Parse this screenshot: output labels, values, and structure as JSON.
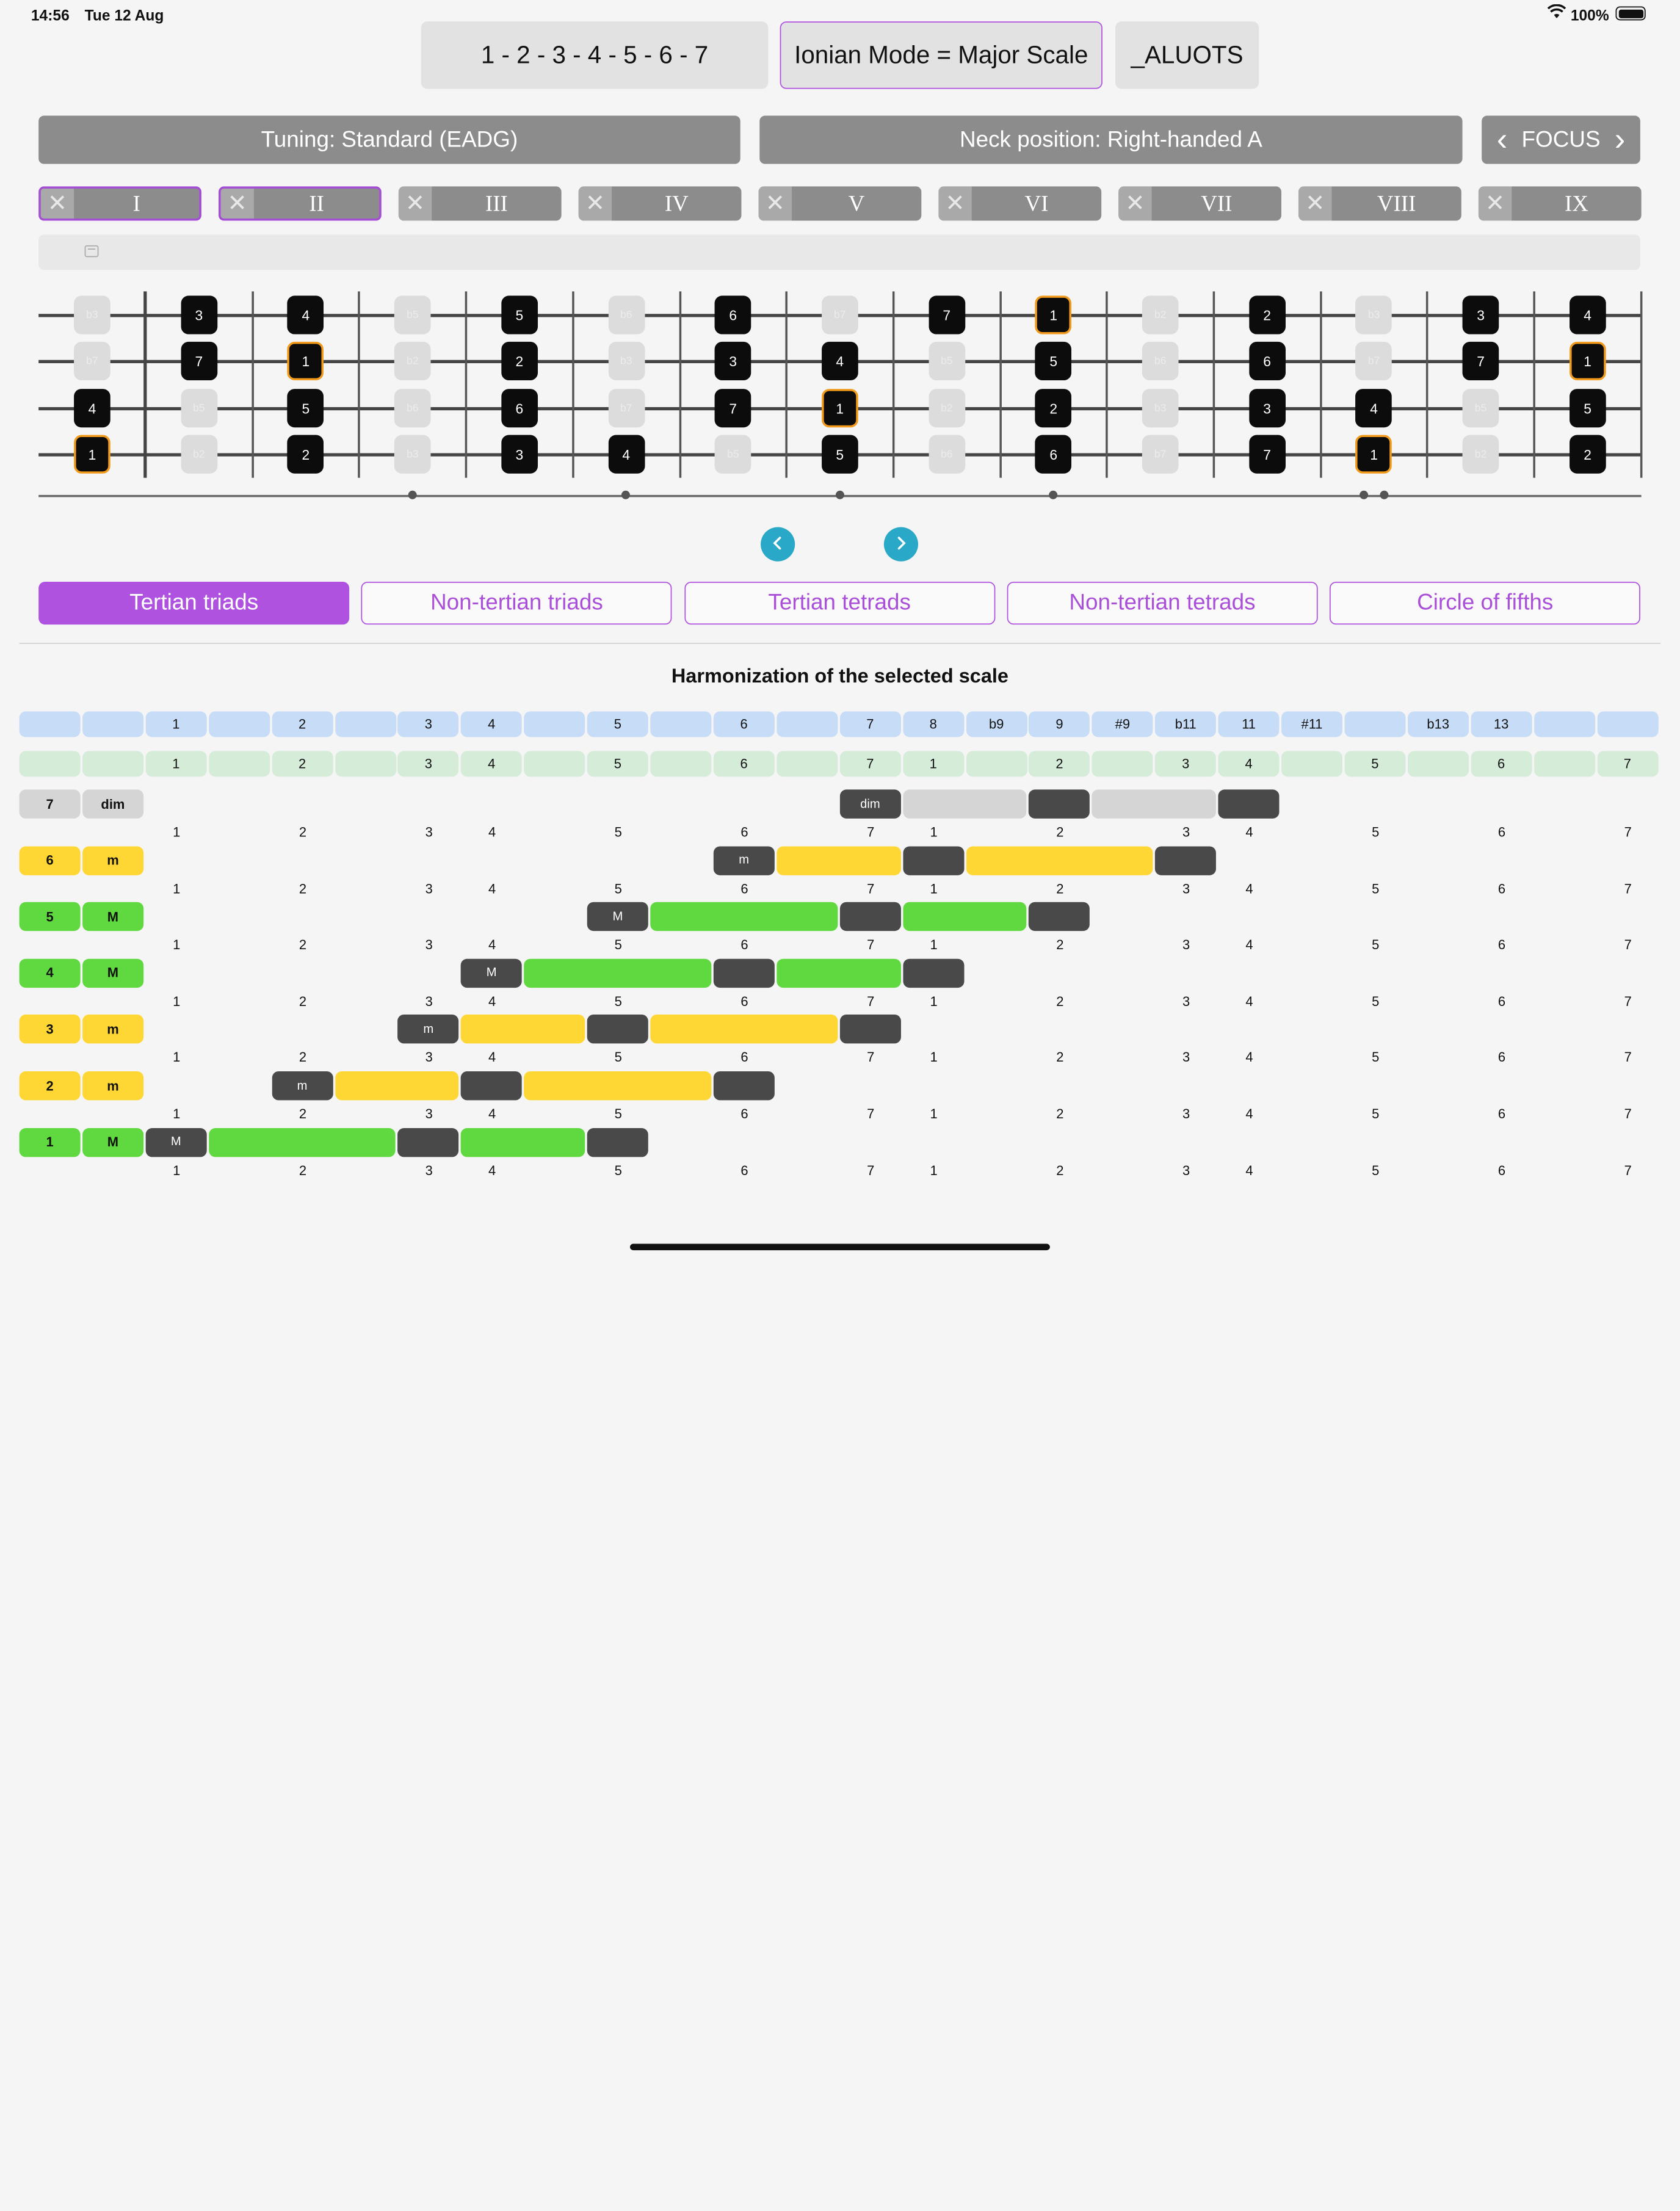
{
  "status": {
    "time": "14:56",
    "date": "Tue 12 Aug",
    "battery": "100%"
  },
  "top": {
    "formula": "1 - 2 - 3 - 4 - 5 - 6 - 7",
    "mode": "Ionian Mode = Major Scale",
    "reversed": "_ALUOTS"
  },
  "controls": {
    "tuning": "Tuning: Standard (EADG)",
    "neck": "Neck position: Right-handed A",
    "focus": "FOCUS",
    "prev_glyph": "‹",
    "next_glyph": "›"
  },
  "positions": [
    {
      "label": "I",
      "selected": true
    },
    {
      "label": "II",
      "selected": true
    },
    {
      "label": "III",
      "selected": false
    },
    {
      "label": "IV",
      "selected": false
    },
    {
      "label": "V",
      "selected": false
    },
    {
      "label": "VI",
      "selected": false
    },
    {
      "label": "VII",
      "selected": false
    },
    {
      "label": "VIII",
      "selected": false
    },
    {
      "label": "IX",
      "selected": false
    }
  ],
  "fretboard": {
    "strings": [
      [
        "b3",
        "3",
        "4",
        "b5",
        "5",
        "b6",
        "6",
        "b7",
        "7",
        "1",
        "b2",
        "2",
        "b3",
        "3",
        "4"
      ],
      [
        "b7",
        "7",
        "1",
        "b2",
        "2",
        "b3",
        "3",
        "4",
        "b5",
        "5",
        "b6",
        "6",
        "b7",
        "7",
        "1"
      ],
      [
        "4",
        "b5",
        "5",
        "b6",
        "6",
        "b7",
        "7",
        "1",
        "b2",
        "2",
        "b3",
        "3",
        "4",
        "b5",
        "5"
      ],
      [
        "1",
        "b2",
        "2",
        "b3",
        "3",
        "4",
        "b5",
        "5",
        "b6",
        "6",
        "b7",
        "7",
        "1",
        "b2",
        "2"
      ]
    ],
    "in_scale": [
      "1",
      "2",
      "3",
      "4",
      "5",
      "6",
      "7"
    ],
    "root": "1",
    "markers": [
      3,
      5,
      7,
      9,
      12
    ]
  },
  "tabs": [
    {
      "label": "Tertian triads",
      "active": true
    },
    {
      "label": "Non-tertian triads",
      "active": false
    },
    {
      "label": "Tertian tetrads",
      "active": false
    },
    {
      "label": "Non-tertian tetrads",
      "active": false
    },
    {
      "label": "Circle of fifths",
      "active": false
    }
  ],
  "harmonization": {
    "title": "Harmonization of the selected scale",
    "interval_row": [
      "",
      "",
      "1",
      "",
      "2",
      "",
      "3",
      "4",
      "",
      "5",
      "",
      "6",
      "",
      "7",
      "8",
      "b9",
      "9",
      "#9",
      "b11",
      "11",
      "#11",
      "",
      "b13",
      "13",
      "",
      ""
    ],
    "degree_row": [
      "",
      "",
      "1",
      "",
      "2",
      "",
      "3",
      "4",
      "",
      "5",
      "",
      "6",
      "",
      "7",
      "1",
      "",
      "2",
      "",
      "3",
      "4",
      "",
      "5",
      "",
      "6",
      "",
      "7"
    ],
    "number_row": [
      "",
      "",
      "1",
      "",
      "2",
      "",
      "3",
      "4",
      "",
      "5",
      "",
      "6",
      "",
      "7",
      "1",
      "",
      "2",
      "",
      "3",
      "4",
      "",
      "5",
      "",
      "6",
      "",
      "7"
    ],
    "colors": {
      "major": "#5fd93f",
      "minor": "#fed735",
      "dim": "#d5d5d5",
      "chord_tone": "#494949",
      "header_blue": "#c6dcf7",
      "header_green": "#d5ecd9"
    },
    "chords": [
      {
        "degree": "7",
        "quality": "dim",
        "type": "dim",
        "start": 13
      },
      {
        "degree": "6",
        "quality": "m",
        "type": "minor",
        "start": 11
      },
      {
        "degree": "5",
        "quality": "M",
        "type": "major",
        "start": 9
      },
      {
        "degree": "4",
        "quality": "M",
        "type": "major",
        "start": 7
      },
      {
        "degree": "3",
        "quality": "m",
        "type": "minor",
        "start": 6
      },
      {
        "degree": "2",
        "quality": "m",
        "type": "minor",
        "start": 4
      },
      {
        "degree": "1",
        "quality": "M",
        "type": "major",
        "start": 2
      }
    ]
  }
}
